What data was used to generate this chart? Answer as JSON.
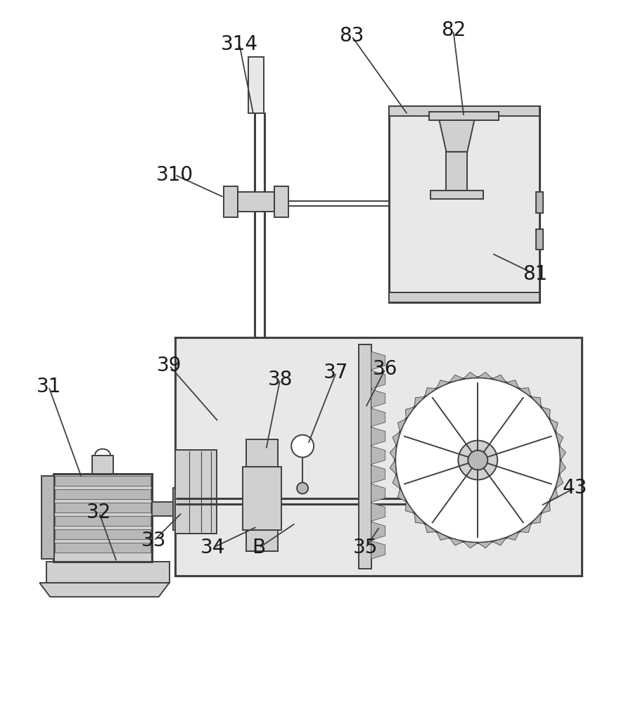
{
  "bg_color": "#ffffff",
  "line_color": "#404040",
  "lw": 1.4,
  "tlw": 2.2,
  "label_fontsize": 20,
  "label_color": "#1a1a1a",
  "gray1": "#e8e8e8",
  "gray2": "#d0d0d0",
  "gray3": "#b8b8b8",
  "gray4": "#a0a0a0"
}
